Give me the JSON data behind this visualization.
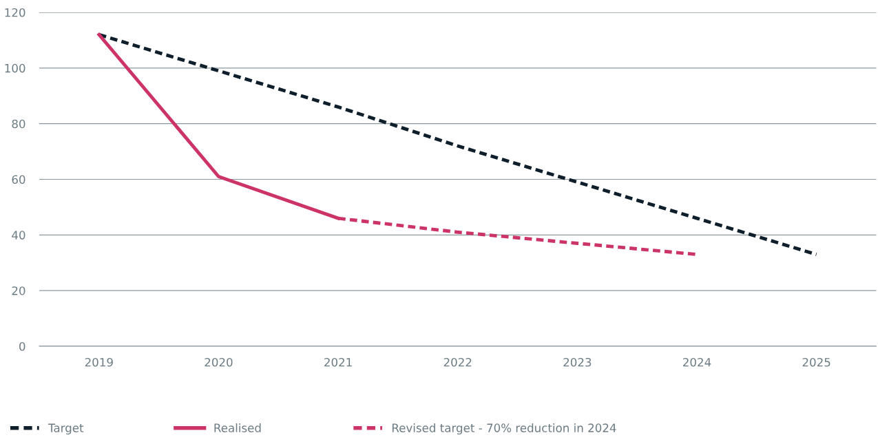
{
  "chart_data": {
    "type": "line",
    "categories": [
      "2019",
      "2020",
      "2021",
      "2022",
      "2023",
      "2024",
      "2025"
    ],
    "series": [
      {
        "name": "Target",
        "color": "#0e1e2b",
        "line_style": "dashed",
        "values": [
          112,
          99,
          86,
          72,
          59,
          46,
          33
        ]
      },
      {
        "name": "Realised",
        "color": "#cc3366",
        "line_style": "solid",
        "values": [
          112,
          61,
          46,
          null,
          null,
          null,
          null
        ]
      },
      {
        "name": "Revised target - 70% reduction in 2024",
        "color": "#cc3366",
        "line_style": "dashed",
        "values": [
          null,
          null,
          46,
          41,
          37,
          33,
          null
        ]
      }
    ],
    "ylim": [
      0,
      120
    ],
    "yticks": [
      0,
      20,
      40,
      60,
      80,
      100,
      120
    ],
    "grid": "y",
    "legend": "bottom",
    "marker": "none"
  }
}
